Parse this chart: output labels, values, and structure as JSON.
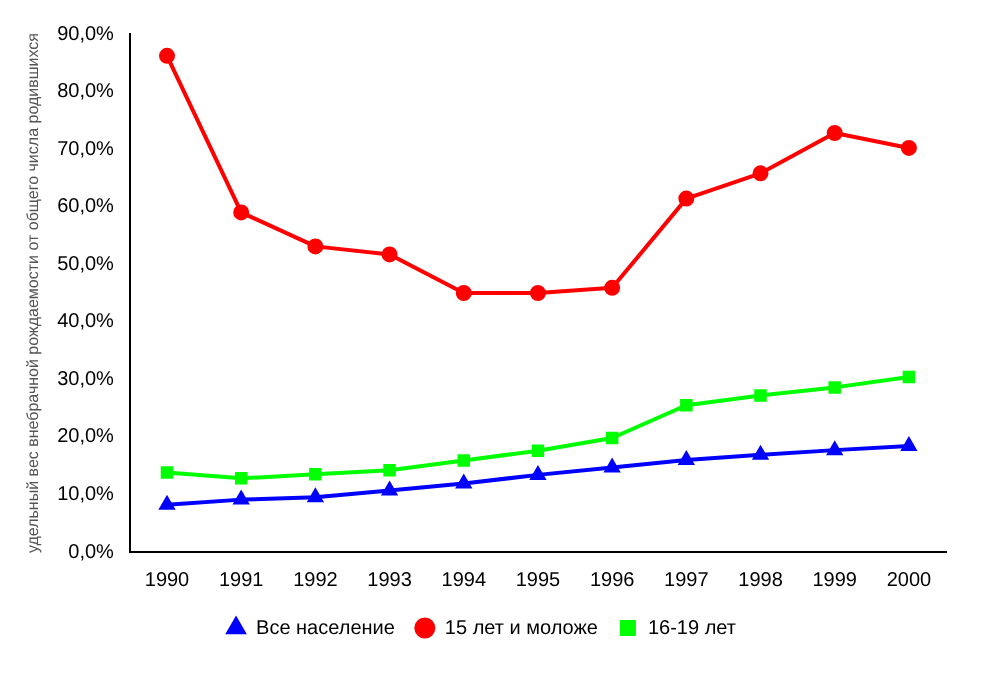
{
  "chart_data": {
    "type": "line",
    "ylabel": "удельный вес внебрачной рождаемости от общего числа родившихся",
    "categories": [
      "1990",
      "1991",
      "1992",
      "1993",
      "1994",
      "1995",
      "1996",
      "1997",
      "1998",
      "1999",
      "2000"
    ],
    "series": [
      {
        "name": "Все население",
        "color": "#0000ff",
        "marker": "triangle",
        "values": [
          8.2,
          9.1,
          9.5,
          10.7,
          11.9,
          13.4,
          14.7,
          16.0,
          16.9,
          17.7,
          18.4
        ]
      },
      {
        "name": "15 лет и моложе",
        "color": "#ff0000",
        "marker": "circle",
        "values": [
          86.2,
          59.0,
          53.1,
          51.7,
          45.0,
          45.0,
          45.9,
          61.4,
          65.8,
          72.8,
          70.2
        ]
      },
      {
        "name": "16-19 лет",
        "color": "#00ff00",
        "marker": "square",
        "values": [
          13.8,
          12.8,
          13.5,
          14.2,
          15.9,
          17.6,
          19.8,
          25.5,
          27.2,
          28.6,
          30.4
        ]
      }
    ],
    "ylim": [
      0,
      90
    ],
    "yticks": [
      {
        "value": 0,
        "label": "0,0%"
      },
      {
        "value": 10,
        "label": "10,0%"
      },
      {
        "value": 20,
        "label": "20,0%"
      },
      {
        "value": 30,
        "label": "30,0%"
      },
      {
        "value": 40,
        "label": "40,0%"
      },
      {
        "value": 50,
        "label": "50,0%"
      },
      {
        "value": 60,
        "label": "60,0%"
      },
      {
        "value": 70,
        "label": "70,0%"
      },
      {
        "value": 80,
        "label": "80,0%"
      },
      {
        "value": 90,
        "label": "90,0%"
      }
    ],
    "grid": false,
    "legend": "bottom",
    "line_style": "solid"
  }
}
